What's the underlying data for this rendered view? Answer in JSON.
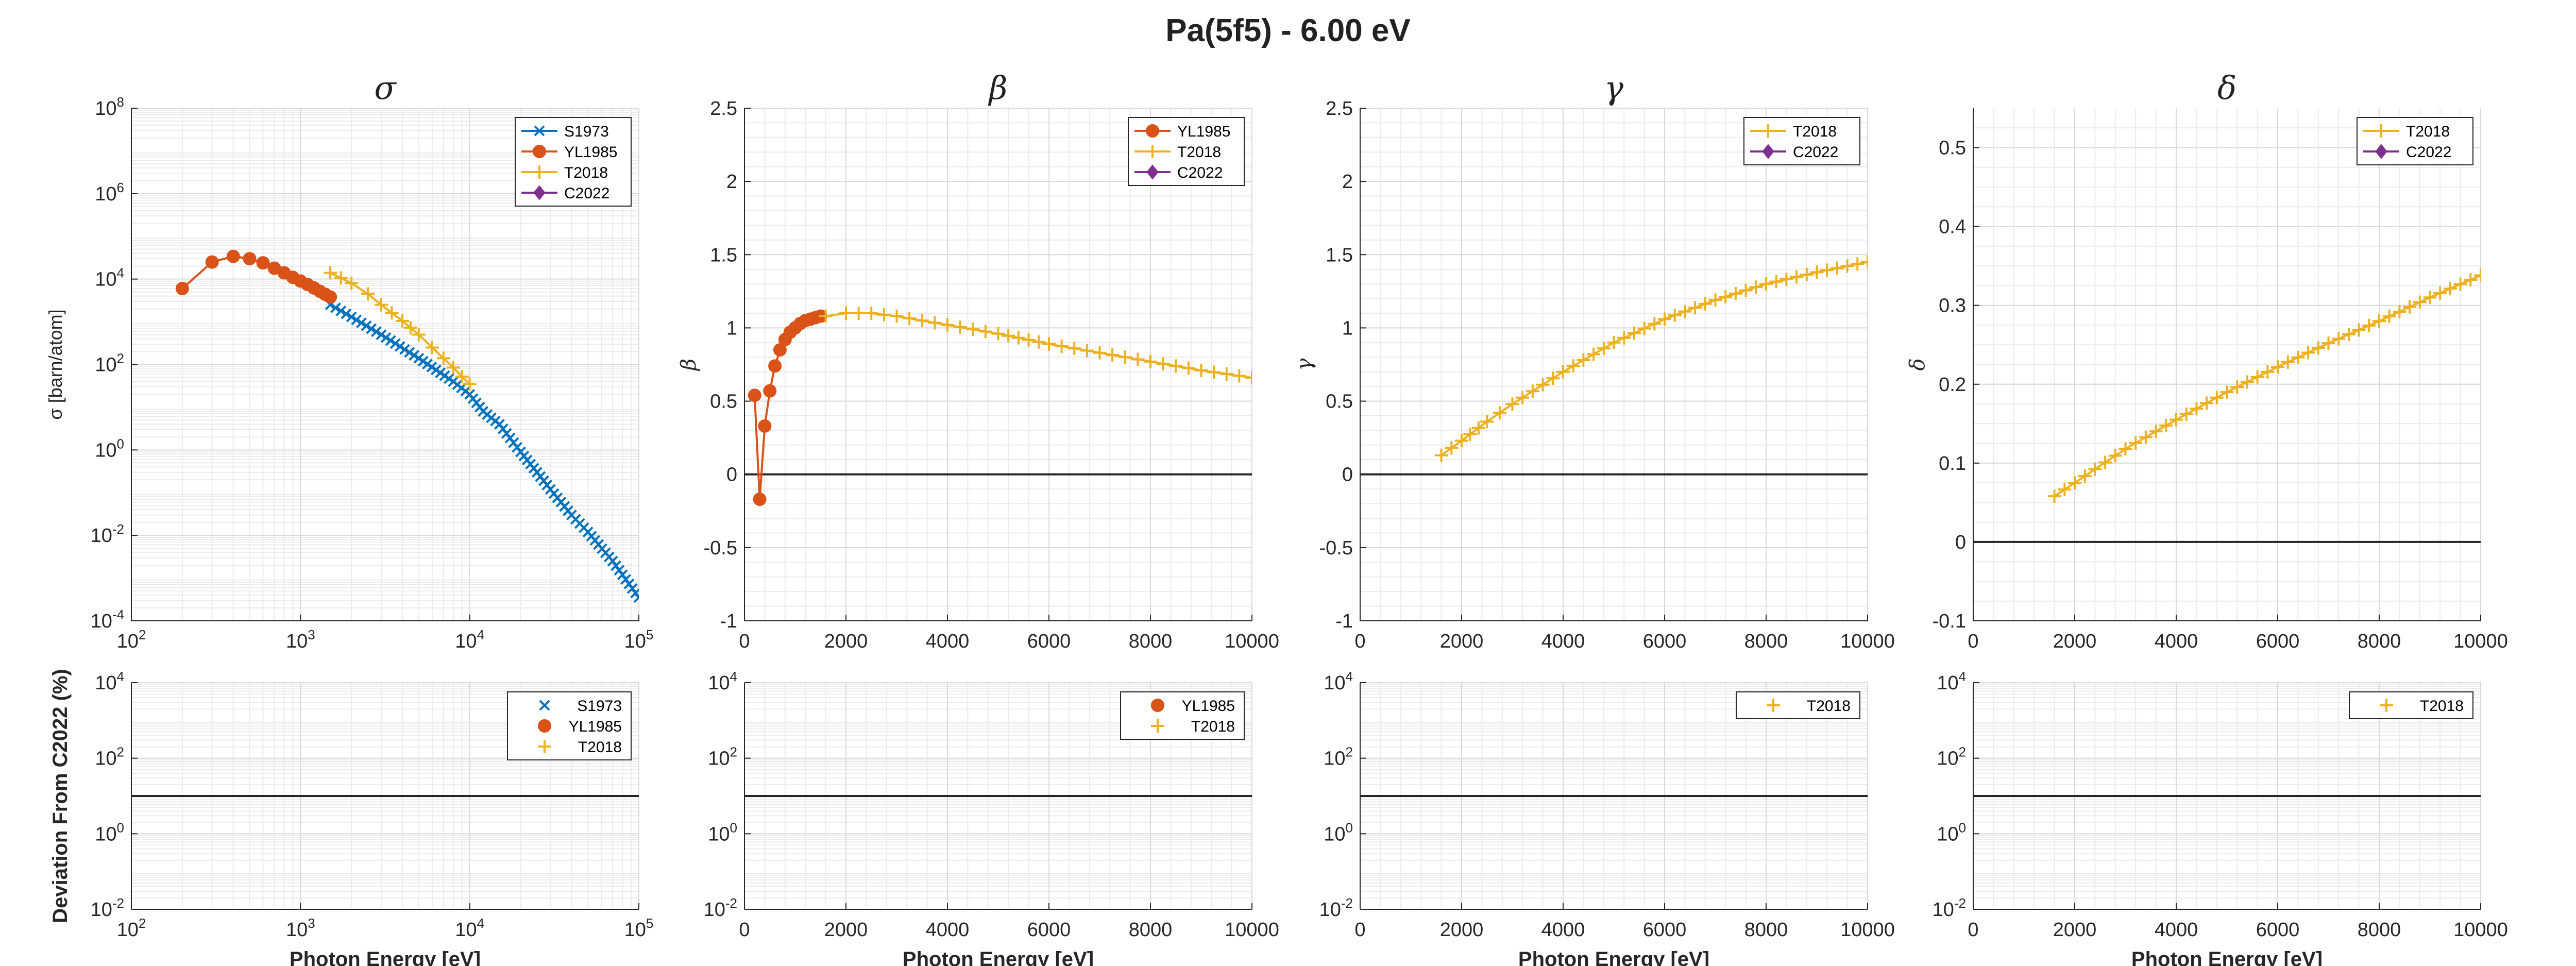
{
  "figure_title": "Pa(5f5) - 6.00 eV",
  "colors": {
    "S1973": "#0072BD",
    "YL1985": "#D95319",
    "T2018": "#EDB120",
    "C2022": "#7E2F8E"
  },
  "chart_data": [
    {
      "id": "sigma",
      "type": "line",
      "title": "σ",
      "ylabel": "σ [barn/atom]",
      "xlabel": "",
      "xscale": "log",
      "yscale": "log",
      "xlim": [
        100,
        100000
      ],
      "ylim": [
        0.0001,
        100000000
      ],
      "xticks": [
        {
          "b": "10",
          "e": "2"
        },
        {
          "b": "10",
          "e": "3"
        },
        {
          "b": "10",
          "e": "4"
        },
        {
          "b": "10",
          "e": "5"
        }
      ],
      "yticks": [
        {
          "b": "10",
          "e": "-4"
        },
        {
          "b": "10",
          "e": "-2"
        },
        {
          "b": "10",
          "e": "0"
        },
        {
          "b": "10",
          "e": "2"
        },
        {
          "b": "10",
          "e": "4"
        },
        {
          "b": "10",
          "e": "6"
        },
        {
          "b": "10",
          "e": "8"
        }
      ],
      "grid": true,
      "legend": "top-right",
      "legend_entries": [
        "S1973",
        "YL1985",
        "T2018",
        "C2022"
      ],
      "series": [
        {
          "name": "S1973",
          "marker": "x",
          "line": true,
          "x": [
            1500,
            2000,
            3000,
            5000,
            8000,
            10000,
            12000,
            15000,
            20000,
            25000,
            30000,
            40000,
            50000,
            70000,
            100000
          ],
          "y": [
            2500,
            1300,
            500,
            140,
            40,
            20,
            8,
            4,
            0.9,
            0.3,
            0.12,
            0.03,
            0.012,
            0.0025,
            0.00035
          ]
        },
        {
          "name": "YL1985",
          "marker": "o",
          "line": true,
          "x": [
            200,
            300,
            400,
            500,
            600,
            700,
            800,
            900,
            1000,
            1100,
            1200,
            1300,
            1400,
            1500
          ],
          "y": [
            6000,
            25000,
            34000,
            30000,
            24000,
            18000,
            14000,
            11000,
            9000,
            7500,
            6200,
            5200,
            4400,
            3800
          ]
        },
        {
          "name": "T2018",
          "marker": "+",
          "line": true,
          "x": [
            1500,
            2000,
            2500,
            3000,
            4000,
            5000,
            6000,
            7000,
            8000,
            9000,
            10000
          ],
          "y": [
            14000,
            8000,
            4500,
            2500,
            1050,
            500,
            250,
            140,
            85,
            52,
            35
          ]
        }
      ]
    },
    {
      "id": "beta",
      "type": "line",
      "title": "β",
      "ylabel": "β",
      "xlabel": "",
      "xscale": "linear",
      "yscale": "linear",
      "xlim": [
        0,
        10000
      ],
      "ylim": [
        -1,
        2.5
      ],
      "xticks": [
        "0",
        "2000",
        "4000",
        "6000",
        "8000",
        "10000"
      ],
      "yticks": [
        "-1",
        "-0.5",
        "0",
        "0.5",
        "1",
        "1.5",
        "2",
        "2.5"
      ],
      "grid": true,
      "legend": "top-right",
      "legend_entries": [
        "YL1985",
        "T2018",
        "C2022"
      ],
      "series": [
        {
          "name": "YL1985",
          "marker": "o",
          "line": true,
          "x": [
            200,
            300,
            400,
            500,
            600,
            700,
            800,
            900,
            1000,
            1100,
            1200,
            1300,
            1400,
            1500
          ],
          "y": [
            0.54,
            -0.17,
            0.33,
            0.57,
            0.74,
            0.85,
            0.92,
            0.97,
            1.0,
            1.03,
            1.05,
            1.06,
            1.07,
            1.08
          ]
        },
        {
          "name": "T2018",
          "marker": "+",
          "line": true,
          "x": [
            1600,
            2000,
            2500,
            3000,
            4000,
            5000,
            6000,
            7000,
            8000,
            9000,
            10000
          ],
          "y": [
            1.08,
            1.1,
            1.1,
            1.08,
            1.02,
            0.96,
            0.89,
            0.83,
            0.77,
            0.71,
            0.66
          ]
        }
      ]
    },
    {
      "id": "gamma",
      "type": "line",
      "title": "γ",
      "ylabel": "γ",
      "xlabel": "",
      "xscale": "linear",
      "yscale": "linear",
      "xlim": [
        0,
        10000
      ],
      "ylim": [
        -1,
        2.5
      ],
      "xticks": [
        "0",
        "2000",
        "4000",
        "6000",
        "8000",
        "10000"
      ],
      "yticks": [
        "-1",
        "-0.5",
        "0",
        "0.5",
        "1",
        "1.5",
        "2",
        "2.5"
      ],
      "grid": true,
      "legend": "top-right",
      "legend_entries": [
        "T2018",
        "C2022"
      ],
      "series": [
        {
          "name": "T2018",
          "marker": "+",
          "line": true,
          "x": [
            1600,
            2000,
            2500,
            3000,
            4000,
            5000,
            6000,
            7000,
            8000,
            9000,
            10000
          ],
          "y": [
            0.13,
            0.23,
            0.36,
            0.48,
            0.7,
            0.9,
            1.06,
            1.19,
            1.3,
            1.38,
            1.45
          ]
        }
      ]
    },
    {
      "id": "delta",
      "type": "line",
      "title": "δ",
      "ylabel": "δ",
      "xlabel": "",
      "xscale": "linear",
      "yscale": "linear",
      "xlim": [
        0,
        10000
      ],
      "ylim": [
        -0.1,
        0.55
      ],
      "xticks": [
        "0",
        "2000",
        "4000",
        "6000",
        "8000",
        "10000"
      ],
      "yticks": [
        "-0.1",
        "0",
        "0.1",
        "0.2",
        "0.3",
        "0.4",
        "0.5"
      ],
      "grid": true,
      "legend": "top-right",
      "legend_entries": [
        "T2018",
        "C2022"
      ],
      "series": [
        {
          "name": "T2018",
          "marker": "+",
          "line": true,
          "x": [
            1600,
            2000,
            3000,
            4000,
            5000,
            6000,
            7000,
            8000,
            9000,
            10000
          ],
          "y": [
            0.058,
            0.075,
            0.118,
            0.155,
            0.19,
            0.222,
            0.252,
            0.28,
            0.31,
            0.338
          ]
        }
      ]
    },
    {
      "id": "dev_sigma",
      "type": "line",
      "title": "",
      "ylabel": "Deviation From C2022 (%)",
      "xlabel": "Photon Energy [eV]",
      "xscale": "log",
      "yscale": "log",
      "xlim": [
        100,
        100000
      ],
      "ylim": [
        0.01,
        10000
      ],
      "xticks": [
        {
          "b": "10",
          "e": "2"
        },
        {
          "b": "10",
          "e": "3"
        },
        {
          "b": "10",
          "e": "4"
        },
        {
          "b": "10",
          "e": "5"
        }
      ],
      "yticks": [
        {
          "b": "10",
          "e": "-2"
        },
        {
          "b": "10",
          "e": "0"
        },
        {
          "b": "10",
          "e": "2"
        },
        {
          "b": "10",
          "e": "4"
        }
      ],
      "grid": true,
      "legend": "top-right",
      "legend_entries": [
        "S1973",
        "YL1985",
        "T2018"
      ],
      "reference_line": 10,
      "series": []
    },
    {
      "id": "dev_beta",
      "type": "line",
      "title": "",
      "ylabel": "",
      "xlabel": "Photon Energy [eV]",
      "xscale": "linear",
      "yscale": "log",
      "xlim": [
        0,
        10000
      ],
      "ylim": [
        0.01,
        10000
      ],
      "xticks": [
        "0",
        "2000",
        "4000",
        "6000",
        "8000",
        "10000"
      ],
      "yticks": [
        {
          "b": "10",
          "e": "-2"
        },
        {
          "b": "10",
          "e": "0"
        },
        {
          "b": "10",
          "e": "2"
        },
        {
          "b": "10",
          "e": "4"
        }
      ],
      "grid": true,
      "legend": "top-right",
      "legend_entries": [
        "YL1985",
        "T2018"
      ],
      "reference_line": 10,
      "series": []
    },
    {
      "id": "dev_gamma",
      "type": "line",
      "title": "",
      "ylabel": "",
      "xlabel": "Photon Energy [eV]",
      "xscale": "linear",
      "yscale": "log",
      "xlim": [
        0,
        10000
      ],
      "ylim": [
        0.01,
        10000
      ],
      "xticks": [
        "0",
        "2000",
        "4000",
        "6000",
        "8000",
        "10000"
      ],
      "yticks": [
        {
          "b": "10",
          "e": "-2"
        },
        {
          "b": "10",
          "e": "0"
        },
        {
          "b": "10",
          "e": "2"
        },
        {
          "b": "10",
          "e": "4"
        }
      ],
      "grid": true,
      "legend": "top-right",
      "legend_entries": [
        "T2018"
      ],
      "reference_line": 10,
      "series": []
    },
    {
      "id": "dev_delta",
      "type": "line",
      "title": "",
      "ylabel": "",
      "xlabel": "Photon Energy [eV]",
      "xscale": "linear",
      "yscale": "log",
      "xlim": [
        0,
        10000
      ],
      "ylim": [
        0.01,
        10000
      ],
      "xticks": [
        "0",
        "2000",
        "4000",
        "6000",
        "8000",
        "10000"
      ],
      "yticks": [
        {
          "b": "10",
          "e": "-2"
        },
        {
          "b": "10",
          "e": "0"
        },
        {
          "b": "10",
          "e": "2"
        },
        {
          "b": "10",
          "e": "4"
        }
      ],
      "grid": true,
      "legend": "top-right",
      "legend_entries": [
        "T2018"
      ],
      "reference_line": 10,
      "series": []
    }
  ]
}
